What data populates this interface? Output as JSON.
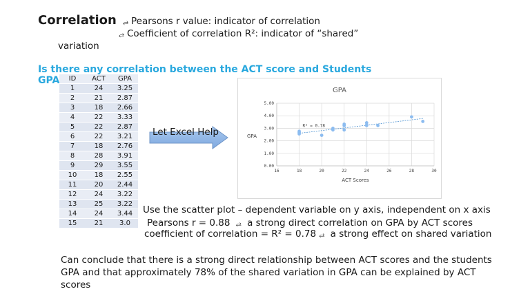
{
  "slide": {
    "title": "Correlation",
    "bullets": [
      "Pearsons r value: indicator of correlation",
      "Coefficient of correlation R²: indicator of “shared”",
      "variation"
    ],
    "bullet_icon": "arrow-return-icon",
    "question_line1": "Is there any correlation between the ACT score and Students",
    "question_line2": "GPA",
    "question_color": "#29a8de",
    "arrow_label": "Let Excel Help",
    "notes": [
      "Use the scatter plot – dependent variable on y axis, independent on x axis",
      "Pearsons r = 0.88",
      "a strong direct correlation on GPA by ACT scores",
      "coefficient of correlation = R² = 0.78",
      "a strong effect on shared variation"
    ],
    "conclusion": "Can conclude that there is a strong direct relationship between ACT scores and the students GPA and that approximately 78% of the shared variation in GPA can be explained by ACT scores"
  },
  "table": {
    "headers": [
      "ID",
      "ACT",
      "GPA"
    ],
    "rows": [
      [
        "1",
        "24",
        "3.25"
      ],
      [
        "2",
        "21",
        "2.87"
      ],
      [
        "3",
        "18",
        "2.66"
      ],
      [
        "4",
        "22",
        "3.33"
      ],
      [
        "5",
        "22",
        "2.87"
      ],
      [
        "6",
        "22",
        "3.21"
      ],
      [
        "7",
        "18",
        "2.76"
      ],
      [
        "8",
        "28",
        "3.91"
      ],
      [
        "9",
        "29",
        "3.55"
      ],
      [
        "10",
        "18",
        "2.55"
      ],
      [
        "11",
        "20",
        "2.44"
      ],
      [
        "12",
        "24",
        "3.22"
      ],
      [
        "13",
        "25",
        "3.22"
      ],
      [
        "14",
        "24",
        "3.44"
      ],
      [
        "15",
        "21",
        "3.0"
      ]
    ]
  },
  "chart_data": {
    "type": "scatter",
    "title": "GPA",
    "xlabel": "ACT Scores",
    "ylabel": "GPA",
    "xlim": [
      16,
      30
    ],
    "ylim": [
      0,
      5
    ],
    "xticks": [
      "16",
      "18",
      "20",
      "22",
      "24",
      "26",
      "28",
      "30"
    ],
    "yticks": [
      "0.00",
      "1.00",
      "2.00",
      "3.00",
      "4.00",
      "5.00"
    ],
    "x": [
      24,
      21,
      18,
      22,
      22,
      22,
      18,
      28,
      29,
      18,
      20,
      24,
      25,
      24,
      21
    ],
    "y": [
      3.25,
      2.87,
      2.66,
      3.33,
      2.87,
      3.21,
      2.76,
      3.91,
      3.55,
      2.55,
      2.44,
      3.22,
      3.22,
      3.44,
      3.0
    ],
    "trendline": {
      "type": "linear",
      "label": "R² = 0.78",
      "from": [
        18,
        2.6
      ],
      "to": [
        29,
        3.78
      ]
    },
    "grid": true,
    "point_color": "#8cbcf0"
  }
}
